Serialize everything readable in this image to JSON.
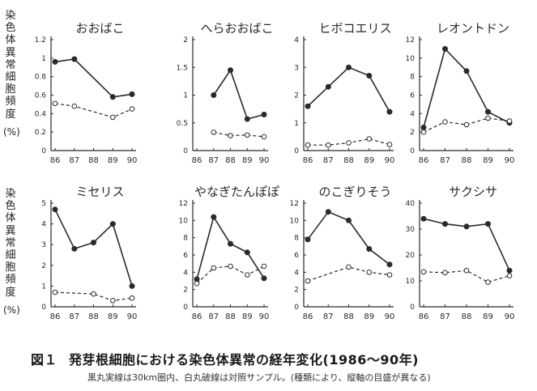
{
  "y_axis_label_chars": [
    "染",
    "色",
    "体",
    "異",
    "常",
    "細",
    "胞",
    "頻",
    "度"
  ],
  "y_axis_unit": "(%)",
  "caption": {
    "fig_no": "図１",
    "title": "発芽根細胞における染色体異常の経年変化(1986〜90年)",
    "note": "黒丸実線は30km圏内、白丸破線は対照サンプル。(種類により、縦軸の目盛が異なる)"
  },
  "colors": {
    "ink": "#2a2a2a",
    "background": "#ffffff"
  },
  "chart_data": [
    {
      "type": "line",
      "title": "おおばこ",
      "x": [
        "86",
        "87",
        "88",
        "89",
        "90"
      ],
      "ylim": [
        0,
        1.2
      ],
      "yticks": [
        {
          "v": 0,
          "t": "0"
        },
        {
          "v": 0.2,
          "t": "0.2"
        },
        {
          "v": 0.4,
          "t": "0.4"
        },
        {
          "v": 0.6,
          "t": "0.6"
        },
        {
          "v": 0.8,
          "t": "0.8"
        },
        {
          "v": 1.0,
          "t": "1"
        },
        {
          "v": 1.2,
          "t": "1.2"
        }
      ],
      "series": [
        {
          "style": "solid-filled",
          "points": [
            [
              86,
              0.96
            ],
            [
              87,
              0.99
            ],
            [
              89,
              0.58
            ],
            [
              90,
              0.61
            ]
          ]
        },
        {
          "style": "dashed-open",
          "points": [
            [
              86,
              0.51
            ],
            [
              87,
              0.48
            ],
            [
              89,
              0.36
            ],
            [
              90,
              0.45
            ]
          ]
        }
      ]
    },
    {
      "type": "line",
      "title": "へらおおばこ",
      "x": [
        "86",
        "87",
        "88",
        "89",
        "90"
      ],
      "ylim": [
        0,
        2
      ],
      "yticks": [
        {
          "v": 0,
          "t": "0"
        },
        {
          "v": 0.5,
          "t": "0.5"
        },
        {
          "v": 1,
          "t": "1"
        },
        {
          "v": 1.5,
          "t": "1.5"
        },
        {
          "v": 2,
          "t": "2"
        }
      ],
      "series": [
        {
          "style": "solid-filled",
          "points": [
            [
              87,
              1.0
            ],
            [
              88,
              1.45
            ],
            [
              89,
              0.57
            ],
            [
              90,
              0.65
            ]
          ]
        },
        {
          "style": "dashed-open",
          "points": [
            [
              87,
              0.33
            ],
            [
              88,
              0.27
            ],
            [
              89,
              0.28
            ],
            [
              90,
              0.25
            ]
          ]
        }
      ]
    },
    {
      "type": "line",
      "title": "ヒボコエリス",
      "x": [
        "86",
        "87",
        "88",
        "89",
        "90"
      ],
      "ylim": [
        0,
        4
      ],
      "yticks": [
        {
          "v": 0,
          "t": "0"
        },
        {
          "v": 1,
          "t": "1"
        },
        {
          "v": 2,
          "t": "2"
        },
        {
          "v": 3,
          "t": "3"
        },
        {
          "v": 4,
          "t": "4"
        }
      ],
      "series": [
        {
          "style": "solid-filled",
          "points": [
            [
              86,
              1.6
            ],
            [
              87,
              2.3
            ],
            [
              88,
              3.0
            ],
            [
              89,
              2.7
            ],
            [
              90,
              1.4
            ]
          ]
        },
        {
          "style": "dashed-open",
          "points": [
            [
              86,
              0.2
            ],
            [
              87,
              0.2
            ],
            [
              88,
              0.28
            ],
            [
              89,
              0.42
            ],
            [
              90,
              0.22
            ]
          ]
        }
      ]
    },
    {
      "type": "line",
      "title": "レオントドン",
      "x": [
        "86",
        "87",
        "88",
        "89",
        "90"
      ],
      "ylim": [
        0,
        12
      ],
      "yticks": [
        {
          "v": 0,
          "t": "0"
        },
        {
          "v": 2,
          "t": "2"
        },
        {
          "v": 4,
          "t": "4"
        },
        {
          "v": 6,
          "t": "6"
        },
        {
          "v": 8,
          "t": "8"
        },
        {
          "v": 10,
          "t": "10"
        },
        {
          "v": 12,
          "t": "12"
        }
      ],
      "series": [
        {
          "style": "solid-filled",
          "points": [
            [
              86,
              2.5
            ],
            [
              87,
              11.0
            ],
            [
              88,
              8.6
            ],
            [
              89,
              4.2
            ],
            [
              90,
              3.0
            ]
          ]
        },
        {
          "style": "dashed-open",
          "points": [
            [
              86,
              2.0
            ],
            [
              87,
              3.1
            ],
            [
              88,
              2.8
            ],
            [
              89,
              3.5
            ],
            [
              90,
              3.2
            ]
          ]
        }
      ]
    },
    {
      "type": "line",
      "title": "ミセリス",
      "x": [
        "86",
        "87",
        "88",
        "89",
        "90"
      ],
      "ylim": [
        0,
        5
      ],
      "yticks": [
        {
          "v": 0,
          "t": "0"
        },
        {
          "v": 1,
          "t": "1"
        },
        {
          "v": 2,
          "t": "2"
        },
        {
          "v": 3,
          "t": "3"
        },
        {
          "v": 4,
          "t": "4"
        },
        {
          "v": 5,
          "t": "5"
        }
      ],
      "series": [
        {
          "style": "solid-filled",
          "points": [
            [
              86,
              4.7
            ],
            [
              87,
              2.8
            ],
            [
              88,
              3.1
            ],
            [
              89,
              4.0
            ],
            [
              90,
              1.0
            ]
          ]
        },
        {
          "style": "dashed-open",
          "points": [
            [
              86,
              0.7
            ],
            [
              88,
              0.62
            ],
            [
              89,
              0.3
            ],
            [
              90,
              0.42
            ]
          ]
        }
      ]
    },
    {
      "type": "line",
      "title": "やなぎたんぽぽ",
      "x": [
        "86",
        "87",
        "88",
        "89",
        "90"
      ],
      "ylim": [
        0,
        12
      ],
      "yticks": [
        {
          "v": 0,
          "t": "0"
        },
        {
          "v": 2,
          "t": "2"
        },
        {
          "v": 4,
          "t": "4"
        },
        {
          "v": 6,
          "t": "6"
        },
        {
          "v": 8,
          "t": "8"
        },
        {
          "v": 10,
          "t": "10"
        },
        {
          "v": 12,
          "t": "12"
        }
      ],
      "series": [
        {
          "style": "solid-filled",
          "points": [
            [
              86,
              3.2
            ],
            [
              87,
              10.4
            ],
            [
              88,
              7.3
            ],
            [
              89,
              6.3
            ],
            [
              90,
              3.3
            ]
          ]
        },
        {
          "style": "dashed-open",
          "points": [
            [
              86,
              2.7
            ],
            [
              87,
              4.5
            ],
            [
              88,
              4.7
            ],
            [
              89,
              3.7
            ],
            [
              90,
              4.7
            ]
          ]
        }
      ]
    },
    {
      "type": "line",
      "title": "のこぎりそう",
      "x": [
        "86",
        "87",
        "88",
        "89",
        "90"
      ],
      "ylim": [
        0,
        12
      ],
      "yticks": [
        {
          "v": 0,
          "t": "0"
        },
        {
          "v": 2,
          "t": "2"
        },
        {
          "v": 4,
          "t": "4"
        },
        {
          "v": 6,
          "t": "6"
        },
        {
          "v": 8,
          "t": "8"
        },
        {
          "v": 10,
          "t": "10"
        },
        {
          "v": 12,
          "t": "12"
        }
      ],
      "series": [
        {
          "style": "solid-filled",
          "points": [
            [
              86,
              7.8
            ],
            [
              87,
              11.0
            ],
            [
              88,
              10.0
            ],
            [
              89,
              6.7
            ],
            [
              90,
              4.9
            ]
          ]
        },
        {
          "style": "dashed-open",
          "points": [
            [
              86,
              3.0
            ],
            [
              88,
              4.6
            ],
            [
              89,
              4.0
            ],
            [
              90,
              3.7
            ]
          ]
        }
      ]
    },
    {
      "type": "line",
      "title": "サクシサ",
      "x": [
        "86",
        "87",
        "88",
        "89",
        "90"
      ],
      "ylim": [
        0,
        40
      ],
      "yticks": [
        {
          "v": 0,
          "t": "0"
        },
        {
          "v": 10,
          "t": "10"
        },
        {
          "v": 20,
          "t": "20"
        },
        {
          "v": 30,
          "t": "30"
        },
        {
          "v": 40,
          "t": "40"
        }
      ],
      "series": [
        {
          "style": "solid-filled",
          "points": [
            [
              86,
              34
            ],
            [
              87,
              32
            ],
            [
              88,
              31
            ],
            [
              89,
              32
            ],
            [
              90,
              14
            ]
          ]
        },
        {
          "style": "dashed-open",
          "points": [
            [
              86,
              13.5
            ],
            [
              87,
              13.2
            ],
            [
              88,
              14
            ],
            [
              89,
              9.5
            ],
            [
              90,
              12
            ]
          ]
        }
      ]
    }
  ]
}
